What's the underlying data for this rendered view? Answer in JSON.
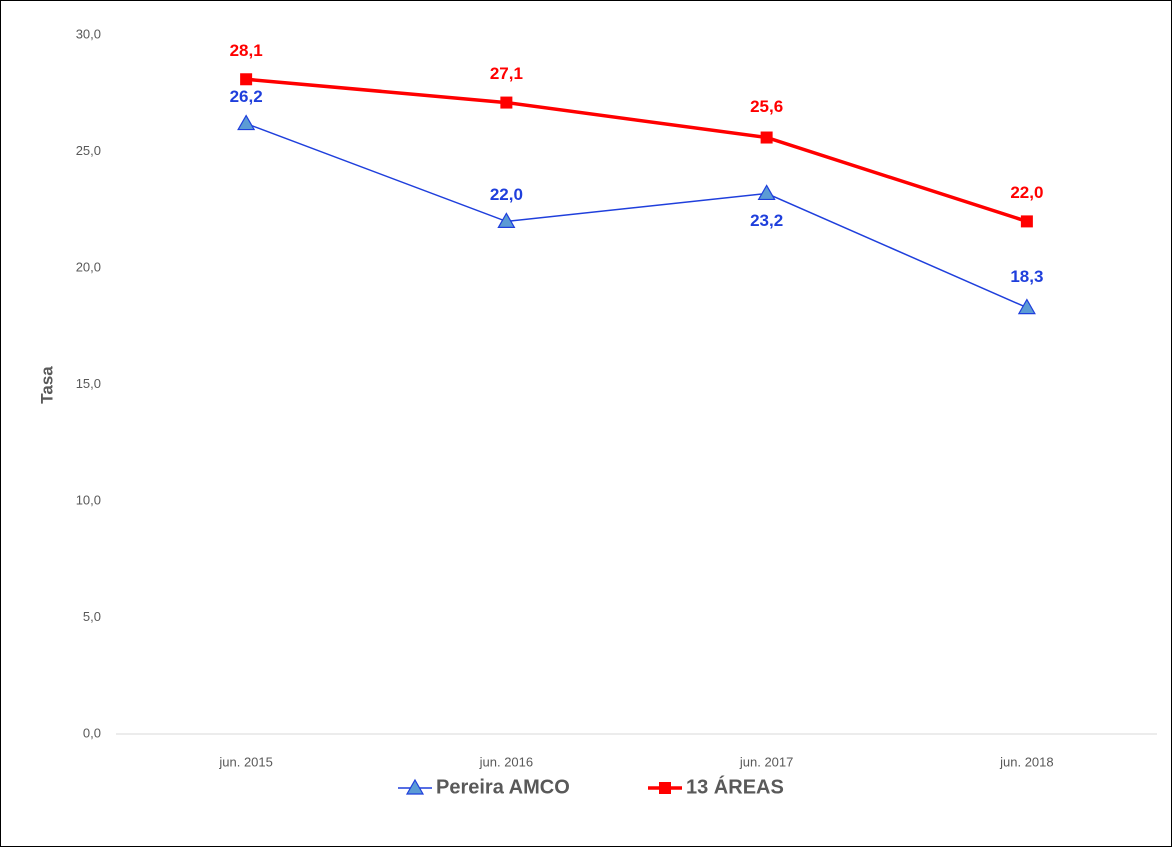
{
  "chart_data": {
    "type": "line",
    "y_label": "Tasa",
    "categories": [
      "jun. 2015",
      "jun. 2016",
      "jun. 2017",
      "jun. 2018"
    ],
    "series": [
      {
        "name": "Pereira AMCO",
        "color": "#1f3fdc",
        "marker": "triangle",
        "marker_fill": "#5b9bd5",
        "values": [
          26.2,
          22.0,
          23.2,
          18.3
        ],
        "value_labels": [
          "26,2",
          "22,0",
          "23,2",
          "18,3"
        ]
      },
      {
        "name": "13 ÁREAS",
        "color": "#ff0000",
        "marker": "square",
        "marker_fill": "#ff0000",
        "values": [
          28.1,
          27.1,
          25.6,
          22.0
        ],
        "value_labels": [
          "28,1",
          "27,1",
          "25,6",
          "22,0"
        ]
      }
    ],
    "ylim": [
      0,
      30
    ],
    "yticks": [
      {
        "value": 0,
        "label": "0,0"
      },
      {
        "value": 5,
        "label": "5,0"
      },
      {
        "value": 10,
        "label": "10,0"
      },
      {
        "value": 15,
        "label": "15,0"
      },
      {
        "value": 20,
        "label": "20,0"
      },
      {
        "value": 25,
        "label": "25,0"
      },
      {
        "value": 30,
        "label": "30,0"
      }
    ],
    "grid": false,
    "legend": "bottom"
  }
}
